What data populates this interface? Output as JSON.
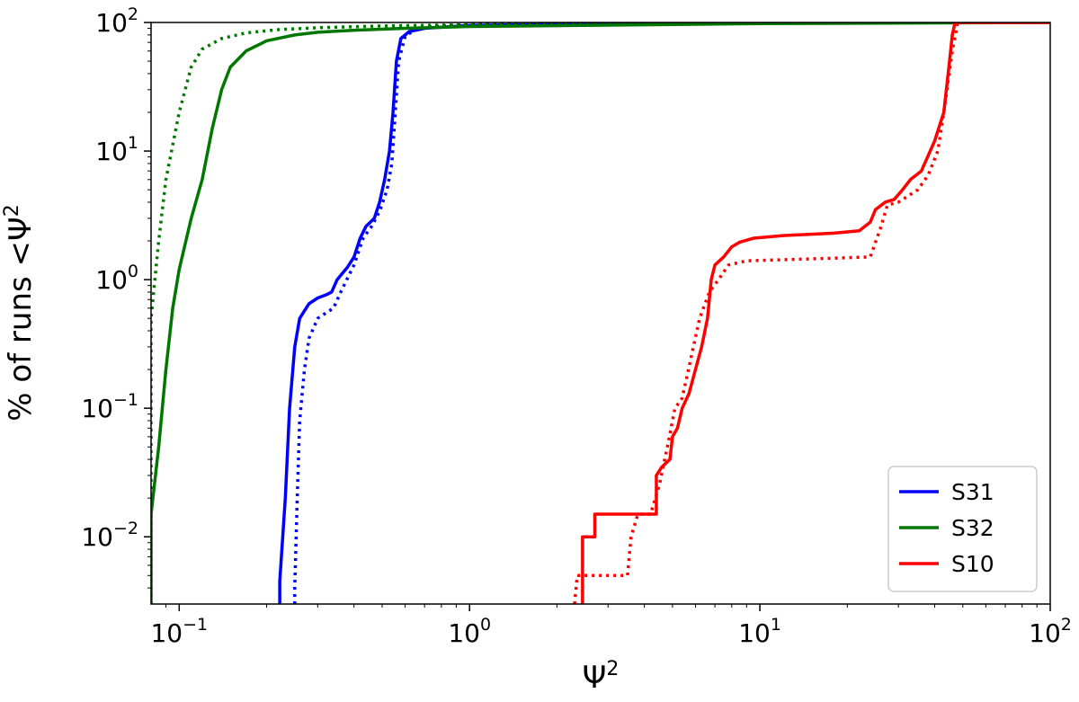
{
  "chart_data": {
    "type": "line",
    "xscale": "log",
    "yscale": "log",
    "xlim": [
      0.08,
      100
    ],
    "ylim": [
      0.003,
      100
    ],
    "xlabel": "Ψ",
    "xlabel_sup": "2",
    "ylabel": "% of runs <Ψ",
    "ylabel_sup": "2",
    "grid": false,
    "legend_position": "lower-right",
    "x_ticks": [
      {
        "value": 0.1,
        "base": "10",
        "exp": "−1"
      },
      {
        "value": 1,
        "base": "10",
        "exp": "0"
      },
      {
        "value": 10,
        "base": "10",
        "exp": "1"
      },
      {
        "value": 100,
        "base": "10",
        "exp": "2"
      }
    ],
    "y_ticks": [
      {
        "value": 0.01,
        "base": "10",
        "exp": "−2"
      },
      {
        "value": 0.1,
        "base": "10",
        "exp": "−1"
      },
      {
        "value": 1,
        "base": "10",
        "exp": "0"
      },
      {
        "value": 10,
        "base": "10",
        "exp": "1"
      },
      {
        "value": 100,
        "base": "10",
        "exp": "2"
      }
    ],
    "legend": [
      {
        "name": "S31",
        "color": "#0000ff"
      },
      {
        "name": "S32",
        "color": "#007700"
      },
      {
        "name": "S10",
        "color": "#ff0000"
      }
    ],
    "series": [
      {
        "name": "S31",
        "color": "#0000ff",
        "style": "solid",
        "points": [
          [
            0.222,
            0.003
          ],
          [
            0.222,
            0.0045
          ],
          [
            0.232,
            0.02
          ],
          [
            0.24,
            0.1
          ],
          [
            0.25,
            0.3
          ],
          [
            0.26,
            0.5
          ],
          [
            0.28,
            0.65
          ],
          [
            0.3,
            0.72
          ],
          [
            0.32,
            0.76
          ],
          [
            0.335,
            0.8
          ],
          [
            0.35,
            1.0
          ],
          [
            0.38,
            1.25
          ],
          [
            0.4,
            1.5
          ],
          [
            0.42,
            2.1
          ],
          [
            0.44,
            2.6
          ],
          [
            0.47,
            3.0
          ],
          [
            0.49,
            4.0
          ],
          [
            0.51,
            6.0
          ],
          [
            0.53,
            10
          ],
          [
            0.545,
            20
          ],
          [
            0.56,
            50
          ],
          [
            0.58,
            75
          ],
          [
            0.62,
            85
          ],
          [
            0.7,
            90
          ],
          [
            1.0,
            95
          ],
          [
            5,
            99
          ],
          [
            100,
            100
          ]
        ]
      },
      {
        "name": "S31",
        "color": "#0000ff",
        "style": "dotted",
        "points": [
          [
            0.25,
            0.003
          ],
          [
            0.25,
            0.004
          ],
          [
            0.255,
            0.02
          ],
          [
            0.26,
            0.08
          ],
          [
            0.27,
            0.2
          ],
          [
            0.28,
            0.35
          ],
          [
            0.3,
            0.5
          ],
          [
            0.32,
            0.55
          ],
          [
            0.34,
            0.6
          ],
          [
            0.36,
            0.8
          ],
          [
            0.4,
            1.3
          ],
          [
            0.43,
            2.1
          ],
          [
            0.46,
            2.6
          ],
          [
            0.49,
            3.4
          ],
          [
            0.52,
            5.0
          ],
          [
            0.54,
            8
          ],
          [
            0.555,
            20
          ],
          [
            0.57,
            50
          ],
          [
            0.6,
            78
          ],
          [
            0.65,
            88
          ],
          [
            0.75,
            93
          ],
          [
            1.0,
            96
          ],
          [
            5,
            99.5
          ],
          [
            100,
            100
          ]
        ]
      },
      {
        "name": "S32",
        "color": "#007700",
        "style": "solid",
        "points": [
          [
            0.08,
            0.003
          ],
          [
            0.08,
            0.015
          ],
          [
            0.085,
            0.05
          ],
          [
            0.09,
            0.2
          ],
          [
            0.095,
            0.6
          ],
          [
            0.1,
            1.2
          ],
          [
            0.11,
            3
          ],
          [
            0.12,
            6
          ],
          [
            0.13,
            15
          ],
          [
            0.14,
            30
          ],
          [
            0.15,
            45
          ],
          [
            0.17,
            60
          ],
          [
            0.2,
            72
          ],
          [
            0.25,
            80
          ],
          [
            0.3,
            84
          ],
          [
            0.4,
            87
          ],
          [
            0.6,
            90
          ],
          [
            1.0,
            93
          ],
          [
            10,
            98
          ],
          [
            100,
            100
          ]
        ]
      },
      {
        "name": "S32",
        "color": "#007700",
        "style": "dotted",
        "points": [
          [
            0.08,
            0.003
          ],
          [
            0.08,
            0.5
          ],
          [
            0.085,
            2
          ],
          [
            0.09,
            6
          ],
          [
            0.1,
            20
          ],
          [
            0.11,
            45
          ],
          [
            0.12,
            62
          ],
          [
            0.14,
            75
          ],
          [
            0.17,
            83
          ],
          [
            0.22,
            88
          ],
          [
            0.3,
            91
          ],
          [
            0.5,
            94
          ],
          [
            1.0,
            96
          ],
          [
            10,
            99
          ],
          [
            100,
            100
          ]
        ]
      },
      {
        "name": "S10",
        "color": "#ff0000",
        "style": "solid",
        "points": [
          [
            2.45,
            0.003
          ],
          [
            2.45,
            0.01
          ],
          [
            2.7,
            0.01
          ],
          [
            2.7,
            0.015
          ],
          [
            4.4,
            0.015
          ],
          [
            4.4,
            0.03
          ],
          [
            4.6,
            0.035
          ],
          [
            4.9,
            0.04
          ],
          [
            5.0,
            0.06
          ],
          [
            5.2,
            0.07
          ],
          [
            5.4,
            0.1
          ],
          [
            5.7,
            0.13
          ],
          [
            6.0,
            0.2
          ],
          [
            6.3,
            0.3
          ],
          [
            6.6,
            0.5
          ],
          [
            6.8,
            1.0
          ],
          [
            7.0,
            1.3
          ],
          [
            7.5,
            1.5
          ],
          [
            8.0,
            1.8
          ],
          [
            8.5,
            1.95
          ],
          [
            9.5,
            2.1
          ],
          [
            12,
            2.2
          ],
          [
            18,
            2.3
          ],
          [
            22,
            2.4
          ],
          [
            24,
            2.8
          ],
          [
            25,
            3.5
          ],
          [
            27,
            4.0
          ],
          [
            29,
            4.2
          ],
          [
            31,
            5.0
          ],
          [
            33,
            6.0
          ],
          [
            36,
            7.0
          ],
          [
            40,
            12
          ],
          [
            43,
            20
          ],
          [
            45,
            50
          ],
          [
            46,
            80
          ],
          [
            47,
            100
          ],
          [
            100,
            100
          ]
        ]
      },
      {
        "name": "S10",
        "color": "#ff0000",
        "style": "dotted",
        "points": [
          [
            2.3,
            0.003
          ],
          [
            2.35,
            0.005
          ],
          [
            3.5,
            0.005
          ],
          [
            3.6,
            0.01
          ],
          [
            3.8,
            0.015
          ],
          [
            4.2,
            0.015
          ],
          [
            4.5,
            0.025
          ],
          [
            4.8,
            0.05
          ],
          [
            5.1,
            0.1
          ],
          [
            5.4,
            0.12
          ],
          [
            5.8,
            0.25
          ],
          [
            6.2,
            0.5
          ],
          [
            6.7,
            0.8
          ],
          [
            7.2,
            1.0
          ],
          [
            7.8,
            1.3
          ],
          [
            9,
            1.4
          ],
          [
            15,
            1.45
          ],
          [
            24,
            1.5
          ],
          [
            26,
            2.5
          ],
          [
            27.5,
            3.8
          ],
          [
            30,
            4.0
          ],
          [
            35,
            5.0
          ],
          [
            38,
            6.5
          ],
          [
            41,
            10
          ],
          [
            43,
            20
          ],
          [
            46,
            60
          ],
          [
            48,
            100
          ],
          [
            100,
            100
          ]
        ]
      }
    ]
  }
}
